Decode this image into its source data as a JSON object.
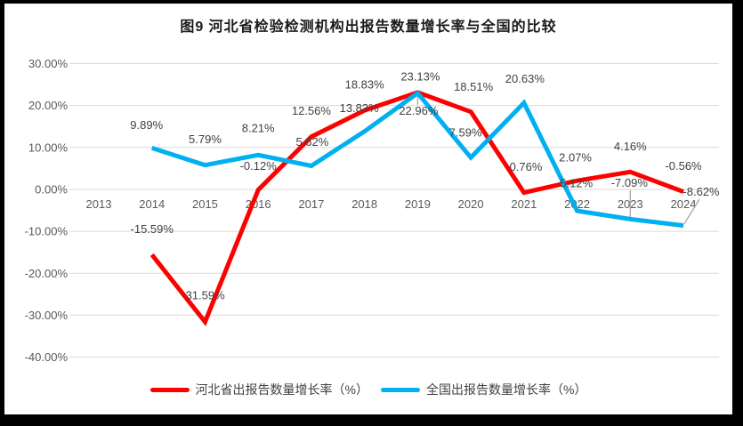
{
  "chart_data": {
    "type": "line",
    "title": "图9 河北省检验检测机构出报告数量增长率与全国的比较",
    "categories": [
      "2013",
      "2014",
      "2015",
      "2016",
      "2017",
      "2018",
      "2019",
      "2020",
      "2021",
      "2022",
      "2023",
      "2024"
    ],
    "series": [
      {
        "name": "河北省出报告数量增长率（%）",
        "color": "#ff0000",
        "values": [
          null,
          -15.59,
          -31.59,
          -0.12,
          12.56,
          18.83,
          23.13,
          18.51,
          -0.76,
          2.07,
          4.16,
          -0.56
        ],
        "data_labels": [
          null,
          "-15.59%",
          "-31.59%",
          "-0.12%",
          "12.56%",
          "18.83%",
          "23.13%",
          "18.51%",
          "-0.76%",
          "2.07%",
          "4.16%",
          "-0.56%"
        ]
      },
      {
        "name": "全国出报告数量增长率（%）",
        "color": "#00b0f0",
        "values": [
          null,
          9.89,
          5.79,
          8.21,
          5.62,
          13.83,
          22.96,
          7.59,
          20.63,
          -5.12,
          -7.09,
          -8.62
        ],
        "data_labels": [
          null,
          "9.89%",
          "5.79%",
          "8.21%",
          "5.62%",
          "13.83%",
          "22.96%",
          "7.59%",
          "20.63%",
          "-5.12%",
          "-7.09%",
          "-8.62%"
        ]
      }
    ],
    "y_axis": {
      "min": -40,
      "max": 30,
      "step": 10,
      "tick_labels": [
        "30.00%",
        "20.00%",
        "10.00%",
        "0.00%",
        "-10.00%",
        "-20.00%",
        "-30.00%",
        "-40.00%"
      ]
    },
    "x_axis": {
      "tick_labels": [
        "2013",
        "2014",
        "2015",
        "2016",
        "2017",
        "2018",
        "2019",
        "2020",
        "2021",
        "2022",
        "2023",
        "2024"
      ]
    },
    "legend": {
      "position": "bottom",
      "entries": [
        "河北省出报告数量增长率（%）",
        "全国出报告数量增长率（%）"
      ]
    },
    "grid": true,
    "colors": {
      "gridline": "#d9d9d9",
      "axis_text": "#595959",
      "data_label_text": "#404040",
      "leader_line": "#a6a6a6",
      "title_text": "#1a1a1a"
    }
  }
}
